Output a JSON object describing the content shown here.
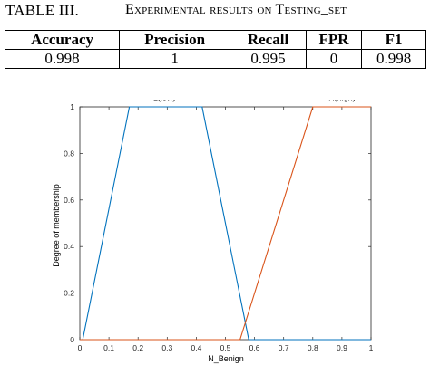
{
  "table": {
    "label": "TABLE III.",
    "title": "Experimental results on Testing_set",
    "headers": [
      "Accuracy",
      "Precision",
      "Recall",
      "FPR",
      "F1"
    ],
    "rows": [
      [
        "0.998",
        "1",
        "0.995",
        "0",
        "0.998"
      ]
    ]
  },
  "chart_data": {
    "type": "line",
    "xlabel": "N_Benign",
    "ylabel": "Degree of membership",
    "xlim": [
      0,
      1
    ],
    "ylim": [
      0,
      1
    ],
    "xticks": [
      "0",
      "0.1",
      "0.2",
      "0.3",
      "0.4",
      "0.5",
      "0.6",
      "0.7",
      "0.8",
      "0.9",
      "1"
    ],
    "yticks": [
      "0",
      "0.2",
      "0.4",
      "0.6",
      "0.8",
      "1"
    ],
    "grid": false,
    "series": [
      {
        "name": "L(low)",
        "color": "#0072bd",
        "x": [
          0,
          0.01,
          0.17,
          0.42,
          0.58,
          1
        ],
        "y": [
          0,
          0,
          1,
          1,
          0,
          0
        ]
      },
      {
        "name": "H(high)",
        "color": "#d95319",
        "x": [
          0,
          0.55,
          0.8,
          1
        ],
        "y": [
          0,
          0,
          1,
          1
        ]
      }
    ],
    "annotations": [
      {
        "text": "L(low)",
        "x": 0.29,
        "y": 1.03
      },
      {
        "text": "H(high)",
        "x": 0.9,
        "y": 1.03
      }
    ]
  }
}
